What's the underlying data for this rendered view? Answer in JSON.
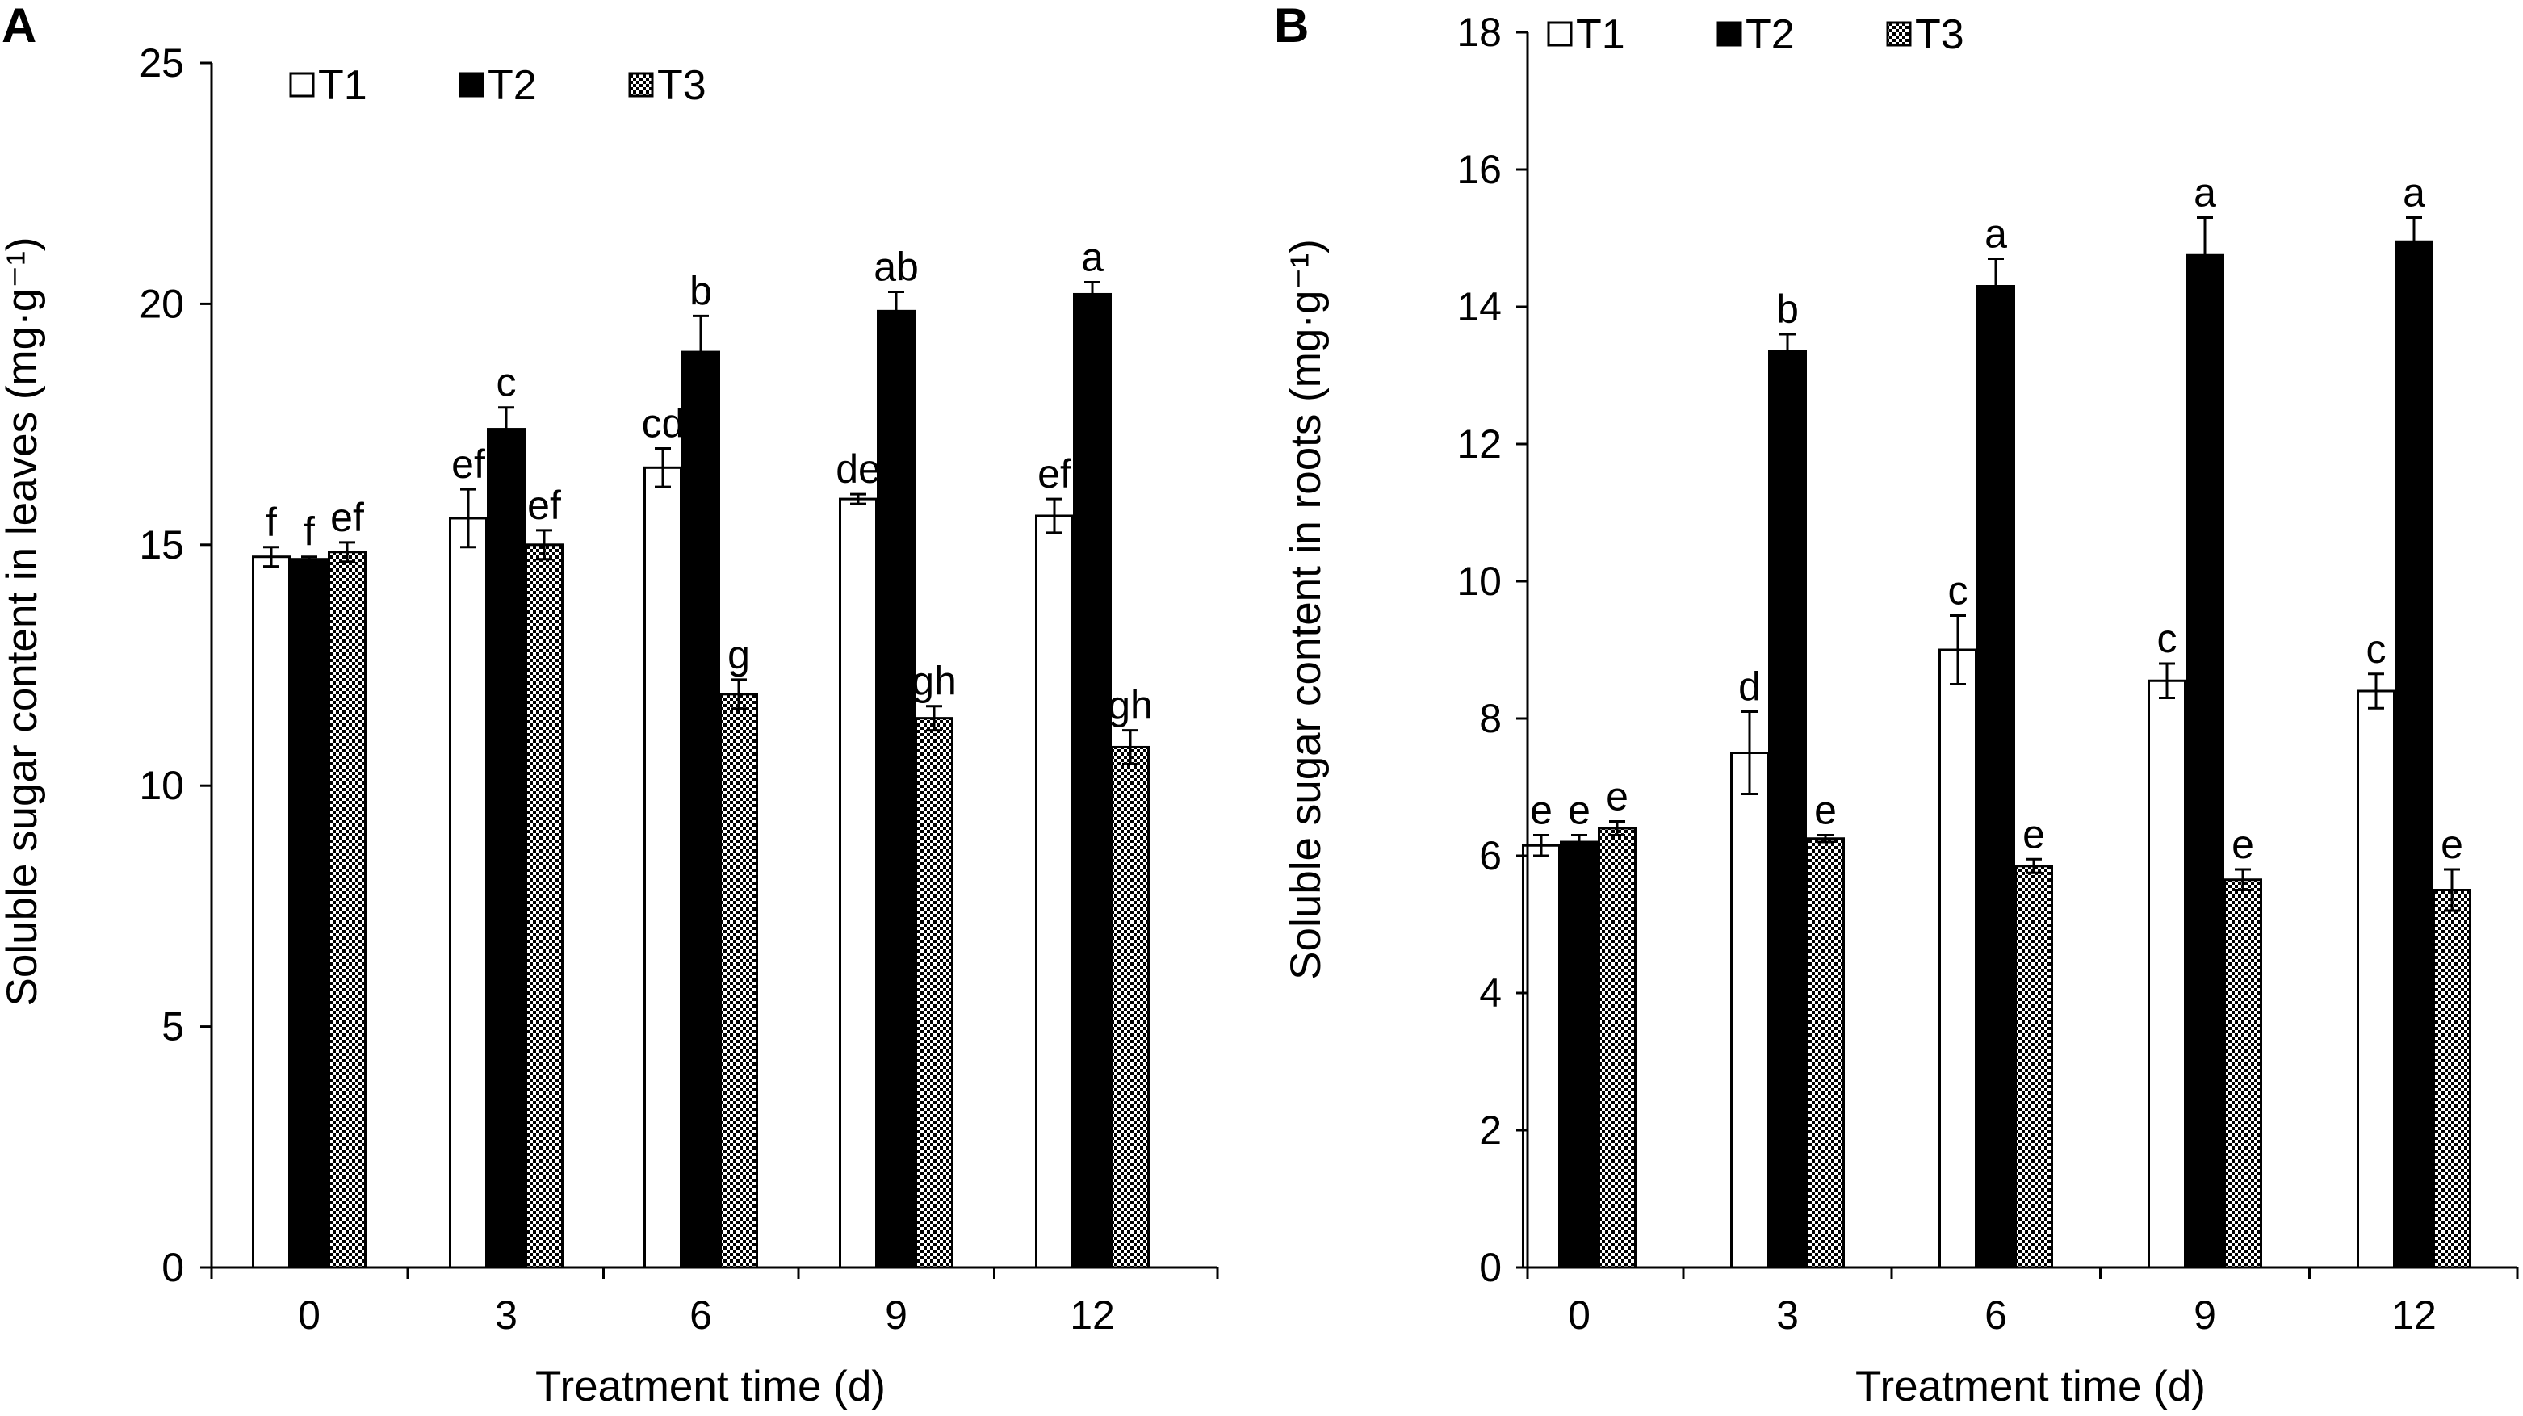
{
  "chart_data": [
    {
      "panel": "A",
      "type": "bar",
      "categories": [
        "0",
        "3",
        "6",
        "9",
        "12"
      ],
      "xlabel": "Treatment time (d)",
      "ylabel": "Soluble sugar content in leaves (mg·g⁻¹)",
      "ylim": [
        0,
        25
      ],
      "yticks": [
        "0",
        "5",
        "10",
        "15",
        "20",
        "25"
      ],
      "grid": false,
      "legend_position": "top-left",
      "series": [
        {
          "name": "T1",
          "fill": "#ffffff",
          "values": [
            14.75,
            15.55,
            16.6,
            15.95,
            15.6
          ],
          "errors": [
            0.2,
            0.6,
            0.4,
            0.1,
            0.35
          ],
          "letters": [
            "f",
            "ef",
            "cd",
            "de",
            "ef"
          ]
        },
        {
          "name": "T2",
          "fill": "#000000",
          "values": [
            14.7,
            17.4,
            19.0,
            19.85,
            20.2
          ],
          "errors": [
            0.05,
            0.45,
            0.75,
            0.4,
            0.25
          ],
          "letters": [
            "f",
            "c",
            "b",
            "ab",
            "a"
          ]
        },
        {
          "name": "T3",
          "fill": "pattern",
          "values": [
            14.85,
            15.0,
            11.9,
            11.4,
            10.8
          ],
          "errors": [
            0.2,
            0.3,
            0.3,
            0.25,
            0.35
          ],
          "letters": [
            "ef",
            "ef",
            "g",
            "gh",
            "gh"
          ]
        }
      ]
    },
    {
      "panel": "B",
      "type": "bar",
      "categories": [
        "0",
        "3",
        "6",
        "9",
        "12"
      ],
      "xlabel": "Treatment time (d)",
      "ylabel": "Soluble sugar content in  roots (mg·g⁻¹)",
      "ylim": [
        0,
        18
      ],
      "yticks": [
        "0",
        "2",
        "4",
        "6",
        "8",
        "10",
        "12",
        "14",
        "16",
        "18"
      ],
      "grid": false,
      "legend_position": "top-left",
      "series": [
        {
          "name": "T1",
          "fill": "#ffffff",
          "values": [
            6.15,
            7.5,
            9.0,
            8.55,
            8.4
          ],
          "errors": [
            0.15,
            0.6,
            0.5,
            0.25,
            0.25
          ],
          "letters": [
            "e",
            "d",
            "c",
            "c",
            "c"
          ]
        },
        {
          "name": "T2",
          "fill": "#000000",
          "values": [
            6.2,
            13.35,
            14.3,
            14.75,
            14.95
          ],
          "errors": [
            0.1,
            0.25,
            0.4,
            0.55,
            0.35
          ],
          "letters": [
            "e",
            "b",
            "a",
            "a",
            "a"
          ]
        },
        {
          "name": "T3",
          "fill": "pattern",
          "values": [
            6.4,
            6.25,
            5.85,
            5.65,
            5.5
          ],
          "errors": [
            0.1,
            0.05,
            0.1,
            0.15,
            0.3
          ],
          "letters": [
            "e",
            "e",
            "e",
            "e",
            "e"
          ]
        }
      ]
    }
  ]
}
